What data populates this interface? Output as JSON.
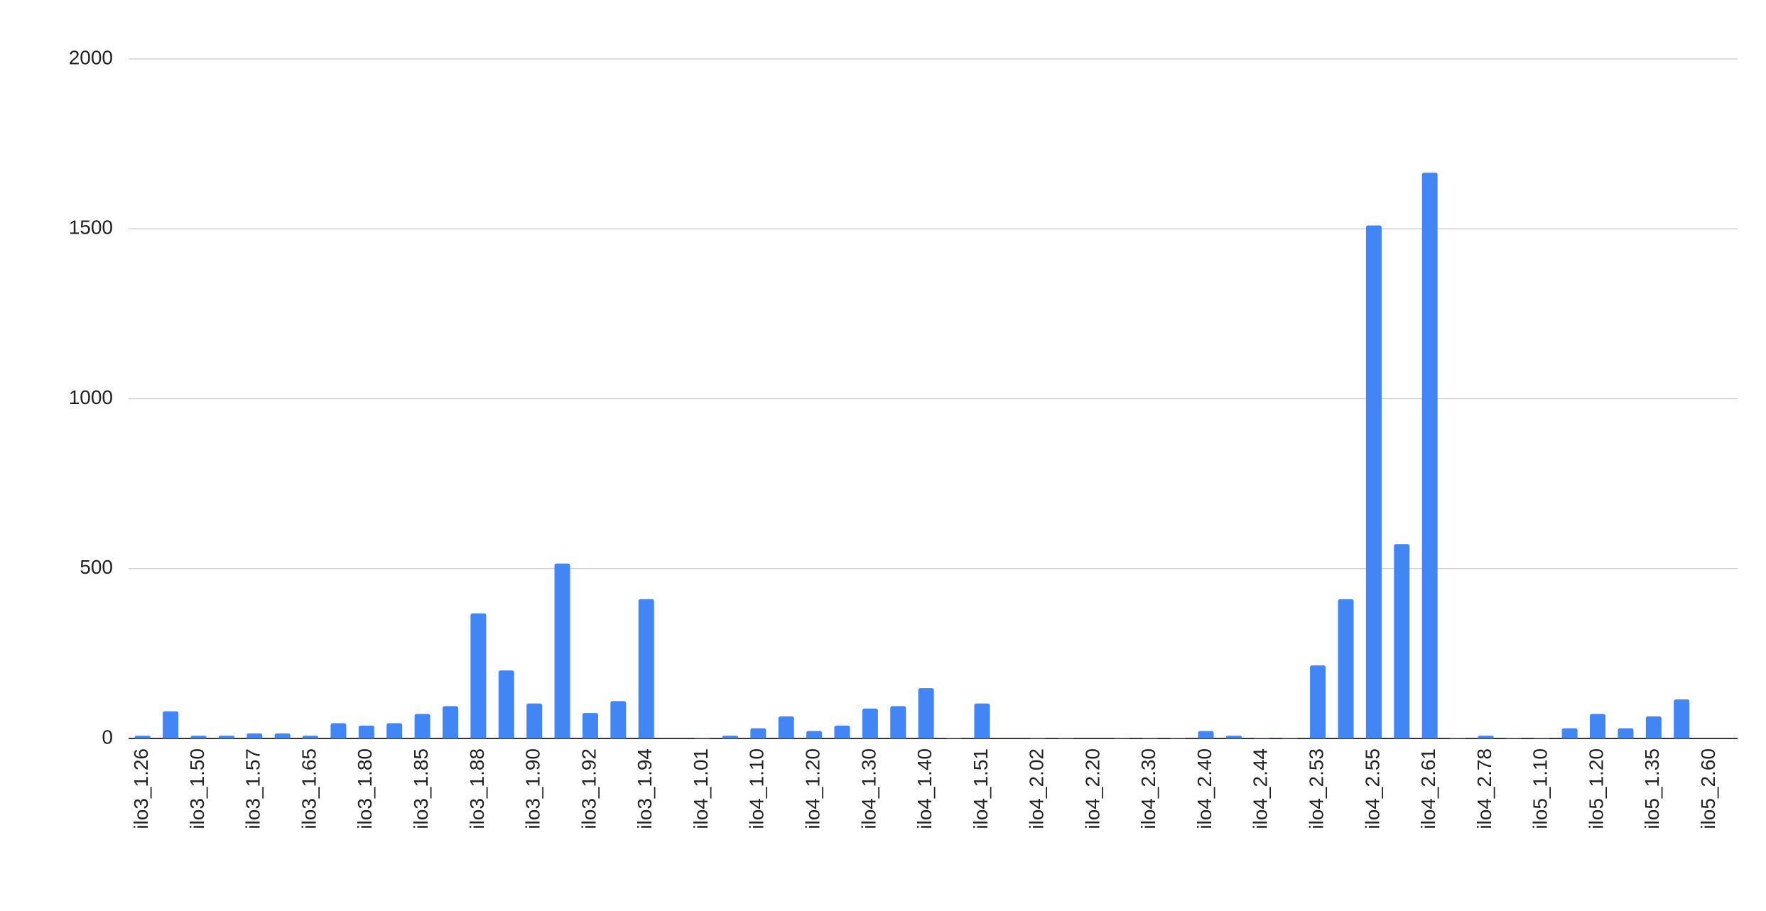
{
  "chart_data": {
    "type": "bar",
    "categories": [
      "ilo3_1.26",
      null,
      "ilo3_1.50",
      null,
      "ilo3_1.57",
      null,
      "ilo3_1.65",
      null,
      "ilo3_1.80",
      null,
      "ilo3_1.85",
      null,
      "ilo3_1.88",
      null,
      "ilo3_1.90",
      null,
      "ilo3_1.92",
      null,
      "ilo3_1.94",
      null,
      "ilo4_1.01",
      null,
      "ilo4_1.10",
      null,
      "ilo4_1.20",
      null,
      "ilo4_1.30",
      null,
      "ilo4_1.40",
      null,
      "ilo4_1.51",
      null,
      "ilo4_2.02",
      null,
      "ilo4_2.20",
      null,
      "ilo4_2.30",
      null,
      "ilo4_2.40",
      null,
      "ilo4_2.44",
      null,
      "ilo4_2.53",
      null,
      "ilo4_2.55",
      null,
      "ilo4_2.61",
      null,
      "ilo4_2.78",
      null,
      "ilo5_1.10",
      null,
      "ilo5_1.20",
      null,
      "ilo5_1.35",
      null,
      "ilo5_2.60"
    ],
    "values": [
      8,
      80,
      8,
      8,
      15,
      15,
      8,
      45,
      38,
      45,
      72,
      95,
      368,
      200,
      103,
      515,
      75,
      110,
      410,
      0,
      2,
      8,
      30,
      65,
      22,
      38,
      88,
      95,
      148,
      2,
      103,
      0,
      2,
      2,
      0,
      2,
      2,
      2,
      22,
      8,
      2,
      2,
      215,
      410,
      1510,
      572,
      1665,
      2,
      8,
      2,
      2,
      30,
      72,
      30,
      65,
      115,
      0
    ],
    "color": "#4285f4",
    "ylim": [
      0,
      2000
    ],
    "yticks": [
      0,
      500,
      1000,
      1500,
      2000
    ],
    "grid": true
  }
}
